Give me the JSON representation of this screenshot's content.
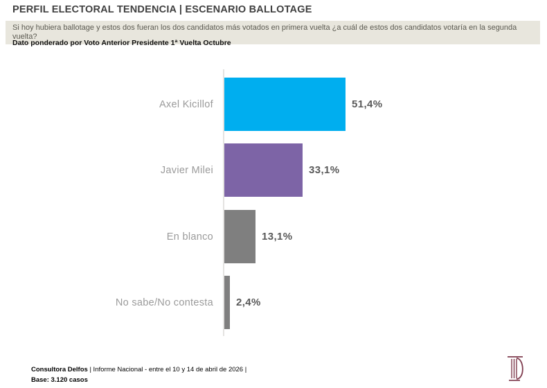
{
  "header": {
    "title": "PERFIL ELECTORAL TENDENCIA | ESCENARIO BALLOTAGE",
    "question": "Si hoy hubiera ballotage y estos dos fueran los dos candidatos más votados en primera vuelta ¿a cuál de estos dos candidatos votaría en la segunda vuelta?",
    "note": "Dato ponderado por Voto Anterior Presidente 1ª Vuelta Octubre"
  },
  "chart_data": {
    "type": "bar",
    "orientation": "horizontal",
    "categories": [
      "Axel Kicillof",
      "Javier Milei",
      "En blanco",
      "No sabe/No contesta"
    ],
    "values": [
      51.4,
      33.1,
      13.1,
      2.4
    ],
    "value_labels": [
      "51,4%",
      "33,1%",
      "13,1%",
      "2,4%"
    ],
    "bar_colors": [
      "#00AEEF",
      "#7D64A6",
      "#7F7F7F",
      "#7F7F7F"
    ],
    "title": "",
    "xlabel": "",
    "ylabel": "",
    "xlim": [
      0,
      100
    ],
    "grid": false,
    "x_axis_ticks_visible": false,
    "baseline_visible": true,
    "legend": "none",
    "value_suffix": "%"
  },
  "footer": {
    "source_bold": "Consultora Delfos",
    "source_rest": " | Informe Nacional - entre el 10 y 14 de abril de 2026 |",
    "base": "Base: 3.120 casos"
  },
  "colors": {
    "accent_cyan": "#00AEEF",
    "accent_purple": "#7D64A6",
    "bar_gray": "#7F7F7F",
    "question_bg": "#E8E6DD",
    "axis_line": "#E4E3E1",
    "logo_maroon": "#7E3A4D"
  }
}
